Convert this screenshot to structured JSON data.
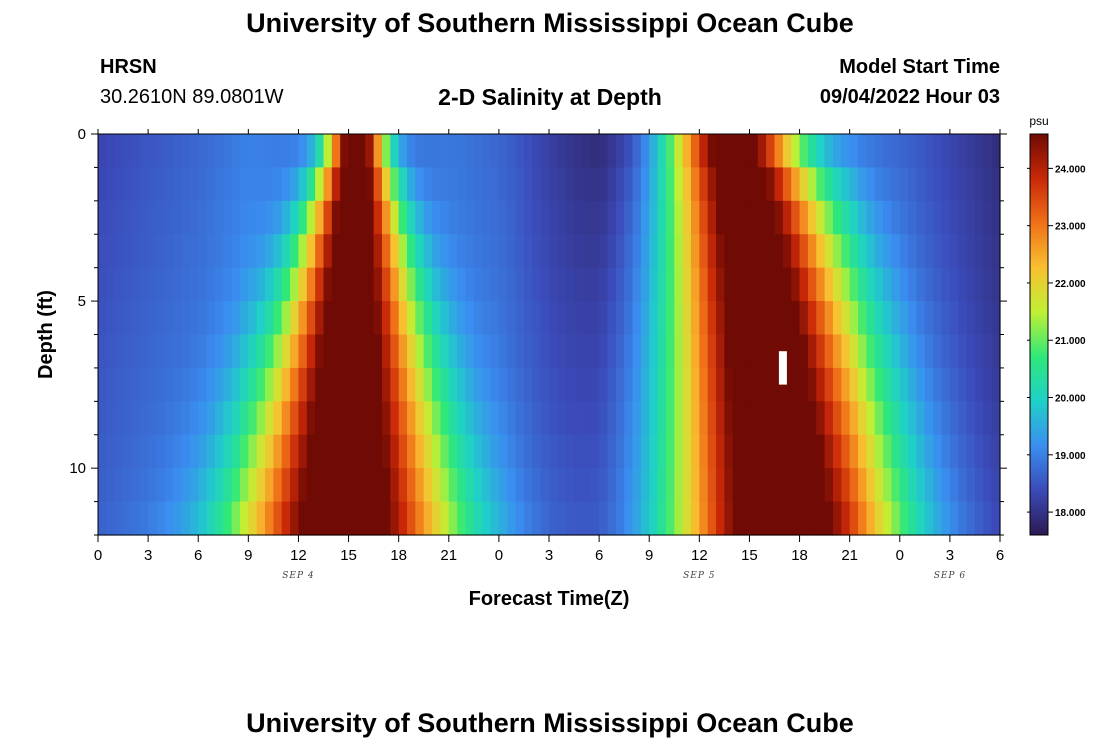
{
  "header": {
    "title": "University of Southern Mississippi Ocean Cube",
    "station": "HRSN",
    "coords": "30.2610N  89.0801W",
    "chart_title": "2-D Salinity at Depth",
    "start_label": "Model Start Time",
    "start_value": "09/04/2022 Hour 03"
  },
  "footer": {
    "title": "University of Southern Mississippi Ocean Cube"
  },
  "colors": {
    "scale": [
      "#2b1a52",
      "#3b4ab8",
      "#3a8ef0",
      "#1fd0c8",
      "#2ee87a",
      "#c0f034",
      "#f8c030",
      "#f07018",
      "#c82808",
      "#700a04"
    ],
    "marker": "#ffffff"
  },
  "chart_data": {
    "type": "heatmap",
    "xlabel": "Forecast Time(Z)",
    "ylabel": "Depth (ft)",
    "x_tick_labels": [
      "0",
      "3",
      "6",
      "9",
      "12",
      "15",
      "18",
      "21",
      "0",
      "3",
      "6",
      "9",
      "12",
      "15",
      "18",
      "21",
      "0",
      "3",
      "6"
    ],
    "x_range_hours": [
      0,
      54
    ],
    "date_labels": [
      {
        "text": "SEP 4",
        "hour": 12
      },
      {
        "text": "SEP 5",
        "hour": 36
      },
      {
        "text": "SEP 6",
        "hour": 51
      }
    ],
    "y_tick_values": [
      0,
      5,
      10
    ],
    "ylim": [
      0,
      12
    ],
    "depth_levels": [
      0.5,
      1.5,
      2.5,
      3.5,
      4.5,
      5.5,
      6.5,
      7.5,
      8.5,
      9.5,
      10.5,
      11.5
    ],
    "colorbar": {
      "unit": "psu",
      "min": 17.6,
      "max": 24.6,
      "ticks": [
        "18.000",
        "19.000",
        "20.000",
        "21.000",
        "22.000",
        "23.000",
        "24.000"
      ]
    },
    "field_model": {
      "background": {
        "hours": [
          0,
          6,
          9,
          13,
          18,
          21,
          24,
          27,
          30,
          33,
          38,
          45,
          48,
          51,
          54
        ],
        "values": [
          18.3,
          18.7,
          19.0,
          18.9,
          18.8,
          18.9,
          18.7,
          18.2,
          17.8,
          17.9,
          18.4,
          18.9,
          18.7,
          18.3,
          17.9
        ]
      },
      "background_depth_gradient": 0.35,
      "pulses": [
        {
          "amplitude": 6.6,
          "center_surface": 15.5,
          "center_bottom": 14.8,
          "halfwidth_surface": 1.5,
          "halfwidth_bottom": 6.0,
          "depth_exponent": 0.9
        },
        {
          "amplitude": 6.9,
          "center_surface": 37.5,
          "center_bottom": 40.8,
          "halfwidth_surface": 3.5,
          "halfwidth_bottom": 6.5,
          "depth_exponent": 0.6
        }
      ]
    },
    "marker": {
      "hour": 41,
      "depth_top": 6.5,
      "depth_bottom": 7.5
    }
  }
}
